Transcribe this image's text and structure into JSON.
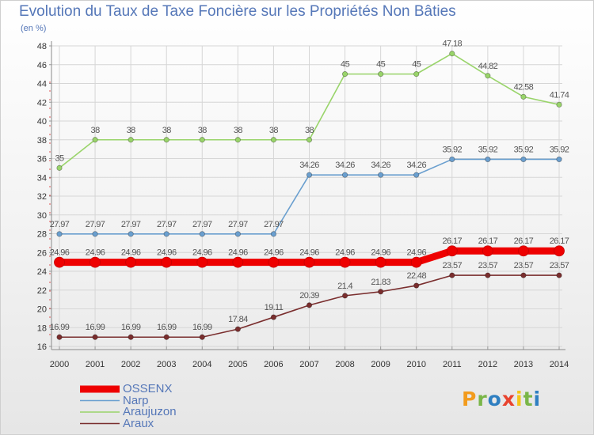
{
  "chart_data": {
    "type": "line",
    "title": "Evolution du Taux de Taxe Foncière sur les Propriétés Non Bâties",
    "ylabel": "(en %)",
    "x": [
      "2000",
      "2001",
      "2002",
      "2003",
      "2004",
      "2005",
      "2006",
      "2007",
      "2008",
      "2009",
      "2010",
      "2011",
      "2012",
      "2013",
      "2014"
    ],
    "ylim": [
      16,
      48
    ],
    "yticks": [
      16,
      18,
      20,
      22,
      24,
      26,
      28,
      30,
      32,
      34,
      36,
      38,
      40,
      42,
      44,
      46,
      48
    ],
    "grid": true,
    "legend_position": "bottom-left",
    "series": [
      {
        "name": "OSSENX",
        "color": "#ee0000",
        "values": [
          24.96,
          24.96,
          24.96,
          24.96,
          24.96,
          24.96,
          24.96,
          24.96,
          24.96,
          24.96,
          24.96,
          26.17,
          26.17,
          26.17,
          26.17
        ],
        "labels": [
          "24.96",
          "24.96",
          "24.96",
          "24.96",
          "24.96",
          "24.96",
          "24.96",
          "24.96",
          "24.96",
          "24.96",
          "24.96",
          "26.17",
          "26.17",
          "26.17",
          "26.17"
        ]
      },
      {
        "name": "Narp",
        "color": "#6a9fcf",
        "values": [
          27.97,
          27.97,
          27.97,
          27.97,
          27.97,
          27.97,
          27.97,
          34.26,
          34.26,
          34.26,
          34.26,
          35.92,
          35.92,
          35.92,
          35.92
        ],
        "labels": [
          "27.97",
          "27.97",
          "27.97",
          "27.97",
          "27.97",
          "27.97",
          "27.97",
          "34.26",
          "34.26",
          "34.26",
          "34.26",
          "35.92",
          "35.92",
          "35.92",
          "35.92"
        ]
      },
      {
        "name": "Araujuzon",
        "color": "#99d46a",
        "values": [
          35,
          38,
          38,
          38,
          38,
          38,
          38,
          38,
          45,
          45,
          45,
          47.18,
          44.82,
          42.58,
          41.74
        ],
        "labels": [
          "35",
          "38",
          "38",
          "38",
          "38",
          "38",
          "38",
          "38",
          "45",
          "45",
          "45",
          "47.18",
          "44.82",
          "42.58",
          "41.74"
        ]
      },
      {
        "name": "Araux",
        "color": "#7a2e2e",
        "values": [
          16.99,
          16.99,
          16.99,
          16.99,
          16.99,
          17.84,
          19.11,
          20.39,
          21.4,
          21.83,
          22.48,
          23.57,
          23.57,
          23.57,
          23.57
        ],
        "labels": [
          "16.99",
          "16.99",
          "16.99",
          "16.99",
          "16.99",
          "17.84",
          "19.11",
          "20.39",
          "21.4",
          "21.83",
          "22.48",
          "23.57",
          "23.57",
          "23.57",
          "23.57"
        ]
      }
    ]
  },
  "logo": {
    "text": "Proxiti",
    "letters": [
      "P",
      "r",
      "o",
      "x",
      "i",
      "t",
      "i"
    ],
    "colors": [
      "#f29b1d",
      "#7ab648",
      "#2f7fc1",
      "#e8432e",
      "#f5c518",
      "#7ab648",
      "#2f7fc1"
    ]
  }
}
